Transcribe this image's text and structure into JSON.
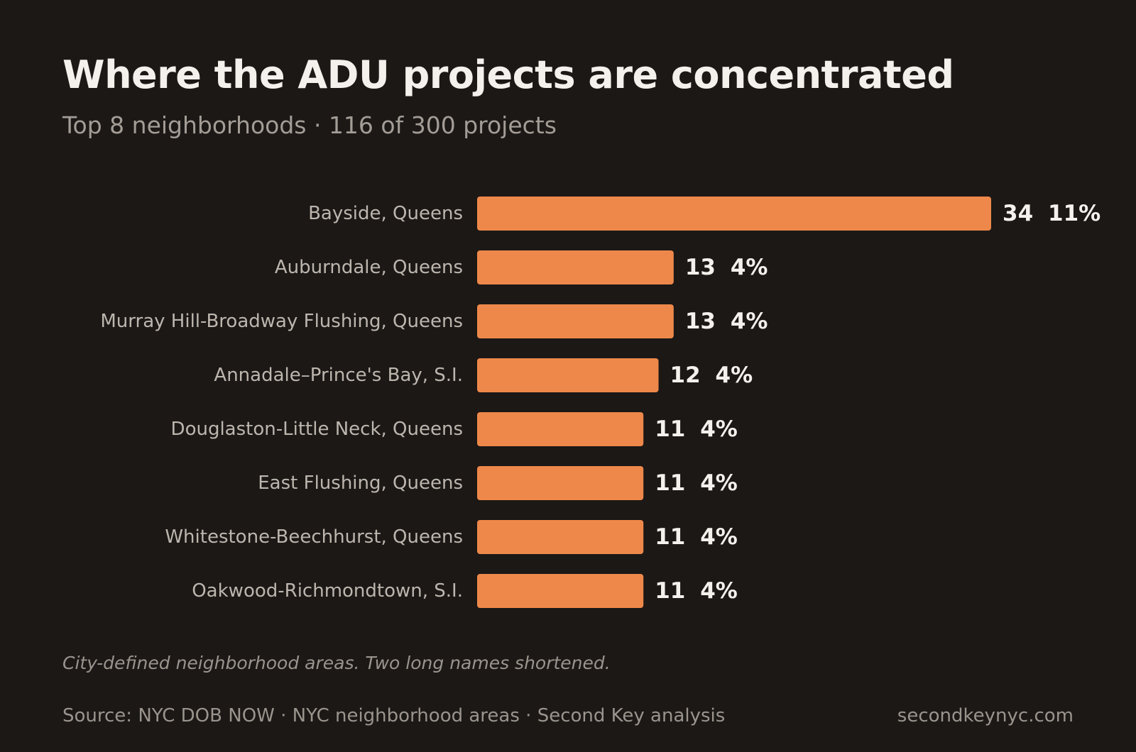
{
  "header": {
    "title": "Where the ADU projects are concentrated",
    "subtitle": "Top 8 neighborhoods · 116 of 300 projects"
  },
  "footer": {
    "note": "City-defined neighborhood areas. Two long names shortened.",
    "source": "Source: NYC DOB NOW · NYC neighborhood areas · Second Key analysis",
    "site": "secondkeynyc.com"
  },
  "colors": {
    "bar": "#ee884a",
    "background": "#1b1816"
  },
  "chart_data": {
    "type": "bar",
    "orientation": "horizontal",
    "title": "Where the ADU projects are concentrated",
    "subtitle": "Top 8 neighborhoods · 116 of 300 projects",
    "categories": [
      "Bayside, Queens",
      "Auburndale, Queens",
      "Murray Hill-Broadway Flushing, Queens",
      "Annadale–Prince's Bay, S.I.",
      "Douglaston-Little Neck, Queens",
      "East Flushing, Queens",
      "Whitestone-Beechhurst, Queens",
      "Oakwood-Richmondtown, S.I."
    ],
    "values": [
      34,
      13,
      13,
      12,
      11,
      11,
      11,
      11
    ],
    "percent_labels": [
      "11%",
      "4%",
      "4%",
      "4%",
      "4%",
      "4%",
      "4%",
      "4%"
    ],
    "grid": false,
    "legend": "none"
  }
}
